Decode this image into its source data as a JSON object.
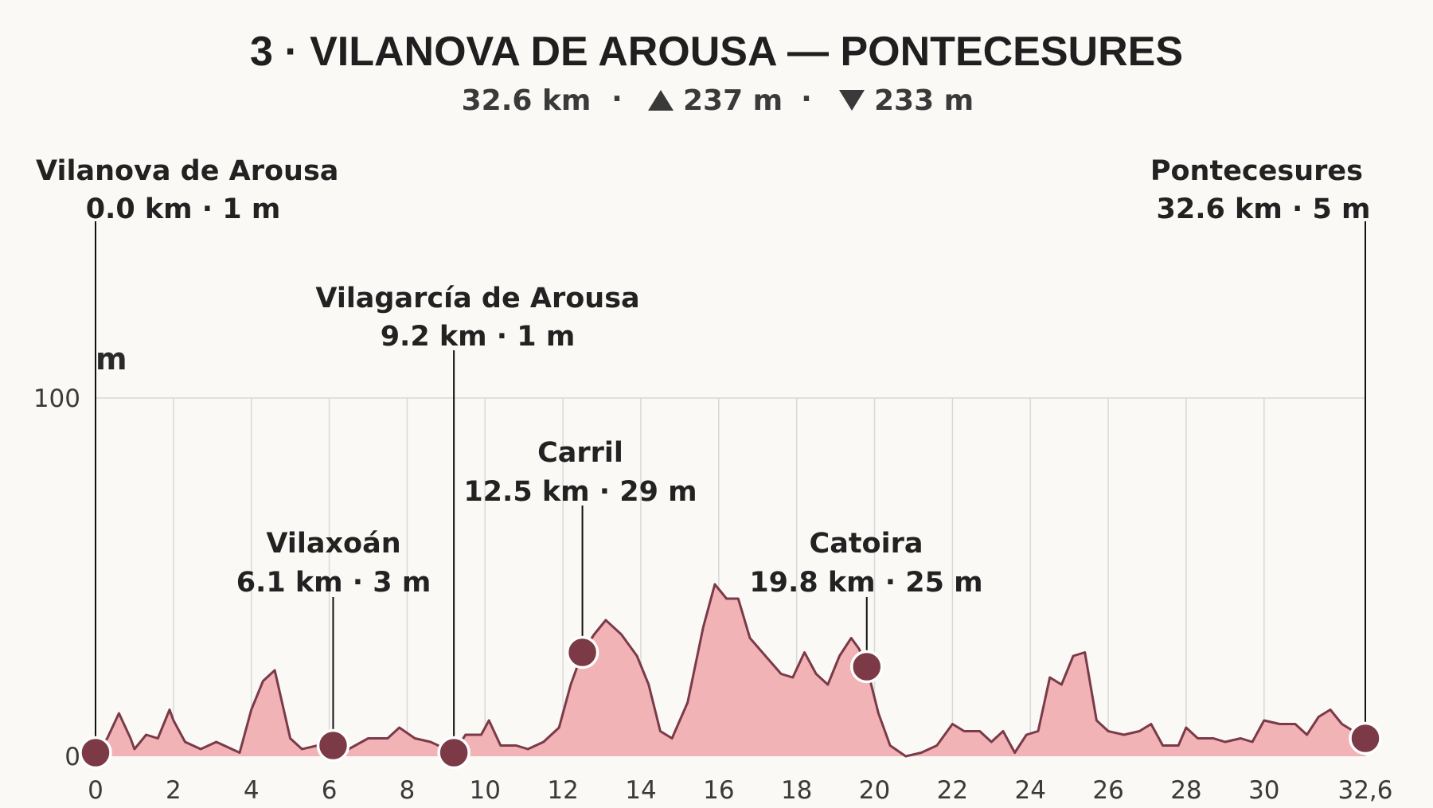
{
  "chart_data": {
    "type": "area",
    "title": "3 · VILANOVA DE AROUSA — PONTECESURES",
    "summary": {
      "distance": "32.6 km",
      "ascent": "237 m",
      "descent": "233 m",
      "ascent_icon": "triangle-up-icon",
      "descent_icon": "triangle-down-icon"
    },
    "ylabel": "m",
    "xlim": [
      0,
      32.6
    ],
    "ylim": [
      0,
      100
    ],
    "yticks": [
      {
        "value": 0,
        "label": "0"
      },
      {
        "value": 100,
        "label": "100"
      }
    ],
    "xticks": [
      {
        "value": 0,
        "label": "0"
      },
      {
        "value": 2,
        "label": "2"
      },
      {
        "value": 4,
        "label": "4"
      },
      {
        "value": 6,
        "label": "6"
      },
      {
        "value": 8,
        "label": "8"
      },
      {
        "value": 10,
        "label": "10"
      },
      {
        "value": 12,
        "label": "12"
      },
      {
        "value": 14,
        "label": "14"
      },
      {
        "value": 16,
        "label": "16"
      },
      {
        "value": 18,
        "label": "18"
      },
      {
        "value": 20,
        "label": "20"
      },
      {
        "value": 22,
        "label": "22"
      },
      {
        "value": 24,
        "label": "24"
      },
      {
        "value": 26,
        "label": "26"
      },
      {
        "value": 28,
        "label": "28"
      },
      {
        "value": 30,
        "label": "30"
      },
      {
        "value": 32.6,
        "label": "32,6"
      }
    ],
    "colors": {
      "fill": "#f2b3b6",
      "line": "#7a3a48",
      "marker": "#7c3a46",
      "marker_stroke": "#ffffff",
      "background": "#faf9f6"
    },
    "profile": {
      "x": [
        0,
        0.3,
        0.6,
        0.9,
        1.0,
        1.3,
        1.6,
        1.9,
        2.0,
        2.3,
        2.7,
        3.1,
        3.3,
        3.7,
        4.0,
        4.3,
        4.6,
        5.0,
        5.3,
        5.7,
        6.1,
        6.5,
        7.0,
        7.5,
        7.8,
        8.2,
        8.6,
        9.0,
        9.2,
        9.5,
        9.9,
        10.1,
        10.4,
        10.8,
        11.1,
        11.5,
        11.9,
        12.2,
        12.5,
        12.8,
        13.1,
        13.5,
        13.9,
        14.2,
        14.5,
        14.8,
        15.2,
        15.6,
        15.9,
        16.2,
        16.5,
        16.8,
        17.2,
        17.6,
        17.9,
        18.2,
        18.5,
        18.8,
        19.1,
        19.4,
        19.6,
        19.8,
        20.1,
        20.4,
        20.8,
        21.2,
        21.6,
        22.0,
        22.3,
        22.7,
        23.0,
        23.3,
        23.6,
        23.9,
        24.2,
        24.5,
        24.8,
        25.1,
        25.4,
        25.7,
        26.0,
        26.4,
        26.8,
        27.1,
        27.4,
        27.8,
        28.0,
        28.3,
        28.7,
        29.0,
        29.4,
        29.7,
        30.0,
        30.4,
        30.8,
        31.1,
        31.4,
        31.7,
        32.0,
        32.3,
        32.6
      ],
      "y": [
        1,
        5,
        12,
        5,
        2,
        6,
        5,
        13,
        10,
        4,
        2,
        4,
        3,
        1,
        13,
        21,
        24,
        5,
        2,
        3,
        3,
        2,
        5,
        5,
        8,
        5,
        4,
        2,
        1,
        6,
        6,
        10,
        3,
        3,
        2,
        4,
        8,
        20,
        29,
        34,
        38,
        34,
        28,
        20,
        7,
        5,
        15,
        36,
        48,
        44,
        44,
        33,
        28,
        23,
        22,
        29,
        23,
        20,
        28,
        33,
        30,
        25,
        12,
        3,
        0,
        1,
        3,
        9,
        7,
        7,
        4,
        7,
        1,
        6,
        7,
        22,
        20,
        28,
        29,
        10,
        7,
        6,
        7,
        9,
        3,
        3,
        8,
        5,
        5,
        4,
        5,
        4,
        10,
        9,
        9,
        6,
        11,
        13,
        9,
        7,
        5
      ]
    },
    "waypoints": [
      {
        "name": "Vilanova de Arousa",
        "km": 0.0,
        "ele": 1,
        "label": "0.0 km · 1 m"
      },
      {
        "name": "Vilaxoán",
        "km": 6.1,
        "ele": 3,
        "label": "6.1 km · 3 m"
      },
      {
        "name": "Vilagarcía de Arousa",
        "km": 9.2,
        "ele": 1,
        "label": "9.2 km · 1 m"
      },
      {
        "name": "Carril",
        "km": 12.5,
        "ele": 29,
        "label": "12.5 km · 29 m"
      },
      {
        "name": "Catoira",
        "km": 19.8,
        "ele": 25,
        "label": "19.8 km · 25 m"
      },
      {
        "name": "Pontecesures",
        "km": 32.6,
        "ele": 5,
        "label": "32.6 km · 5 m"
      }
    ]
  }
}
